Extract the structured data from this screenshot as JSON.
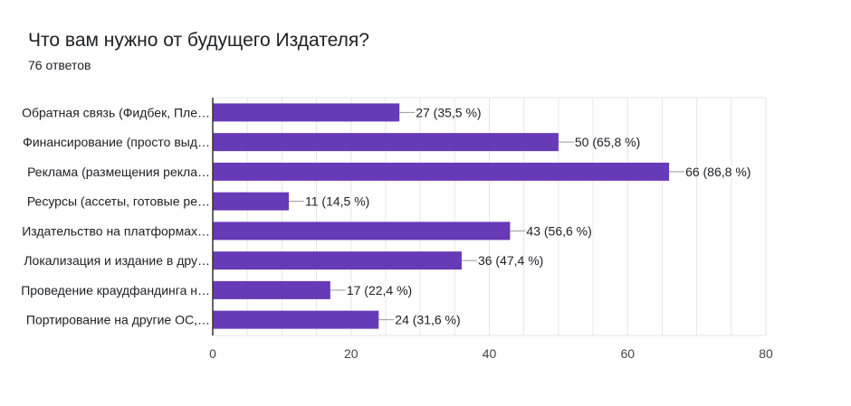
{
  "header": {
    "title": "Что вам нужно от будущего Издателя?",
    "subtitle": "76 ответов"
  },
  "colors": {
    "bar": "#673ab7",
    "grid": "#e6e6e6",
    "axis": "#333333",
    "text": "#202124",
    "tick": "#444444"
  },
  "chart_data": {
    "type": "bar",
    "orientation": "horizontal",
    "categories": [
      "Обратная связь (Фидбек, Пле…",
      "Финансирование (просто выд…",
      "Реклама (размещения рекла…",
      "Ресурсы (ассеты, готовые ре…",
      "Издательство на платформах…",
      "Локализация и издание в дру…",
      "Проведение краудфандинга н…",
      "Портирование на другие ОС,…"
    ],
    "values": [
      27,
      50,
      66,
      11,
      43,
      36,
      17,
      24
    ],
    "data_labels": [
      "27 (35,5 %)",
      "50 (65,8 %)",
      "66 (86,8 %)",
      "11 (14,5 %)",
      "43 (56,6 %)",
      "36 (47,4 %)",
      "17 (22,4 %)",
      "24 (31,6 %)"
    ],
    "xlim": [
      0,
      80
    ],
    "xticks": [
      0,
      20,
      40,
      60,
      80
    ],
    "xtick_labels": [
      "0",
      "20",
      "40",
      "60",
      "80"
    ],
    "grid": true,
    "legend": false
  }
}
